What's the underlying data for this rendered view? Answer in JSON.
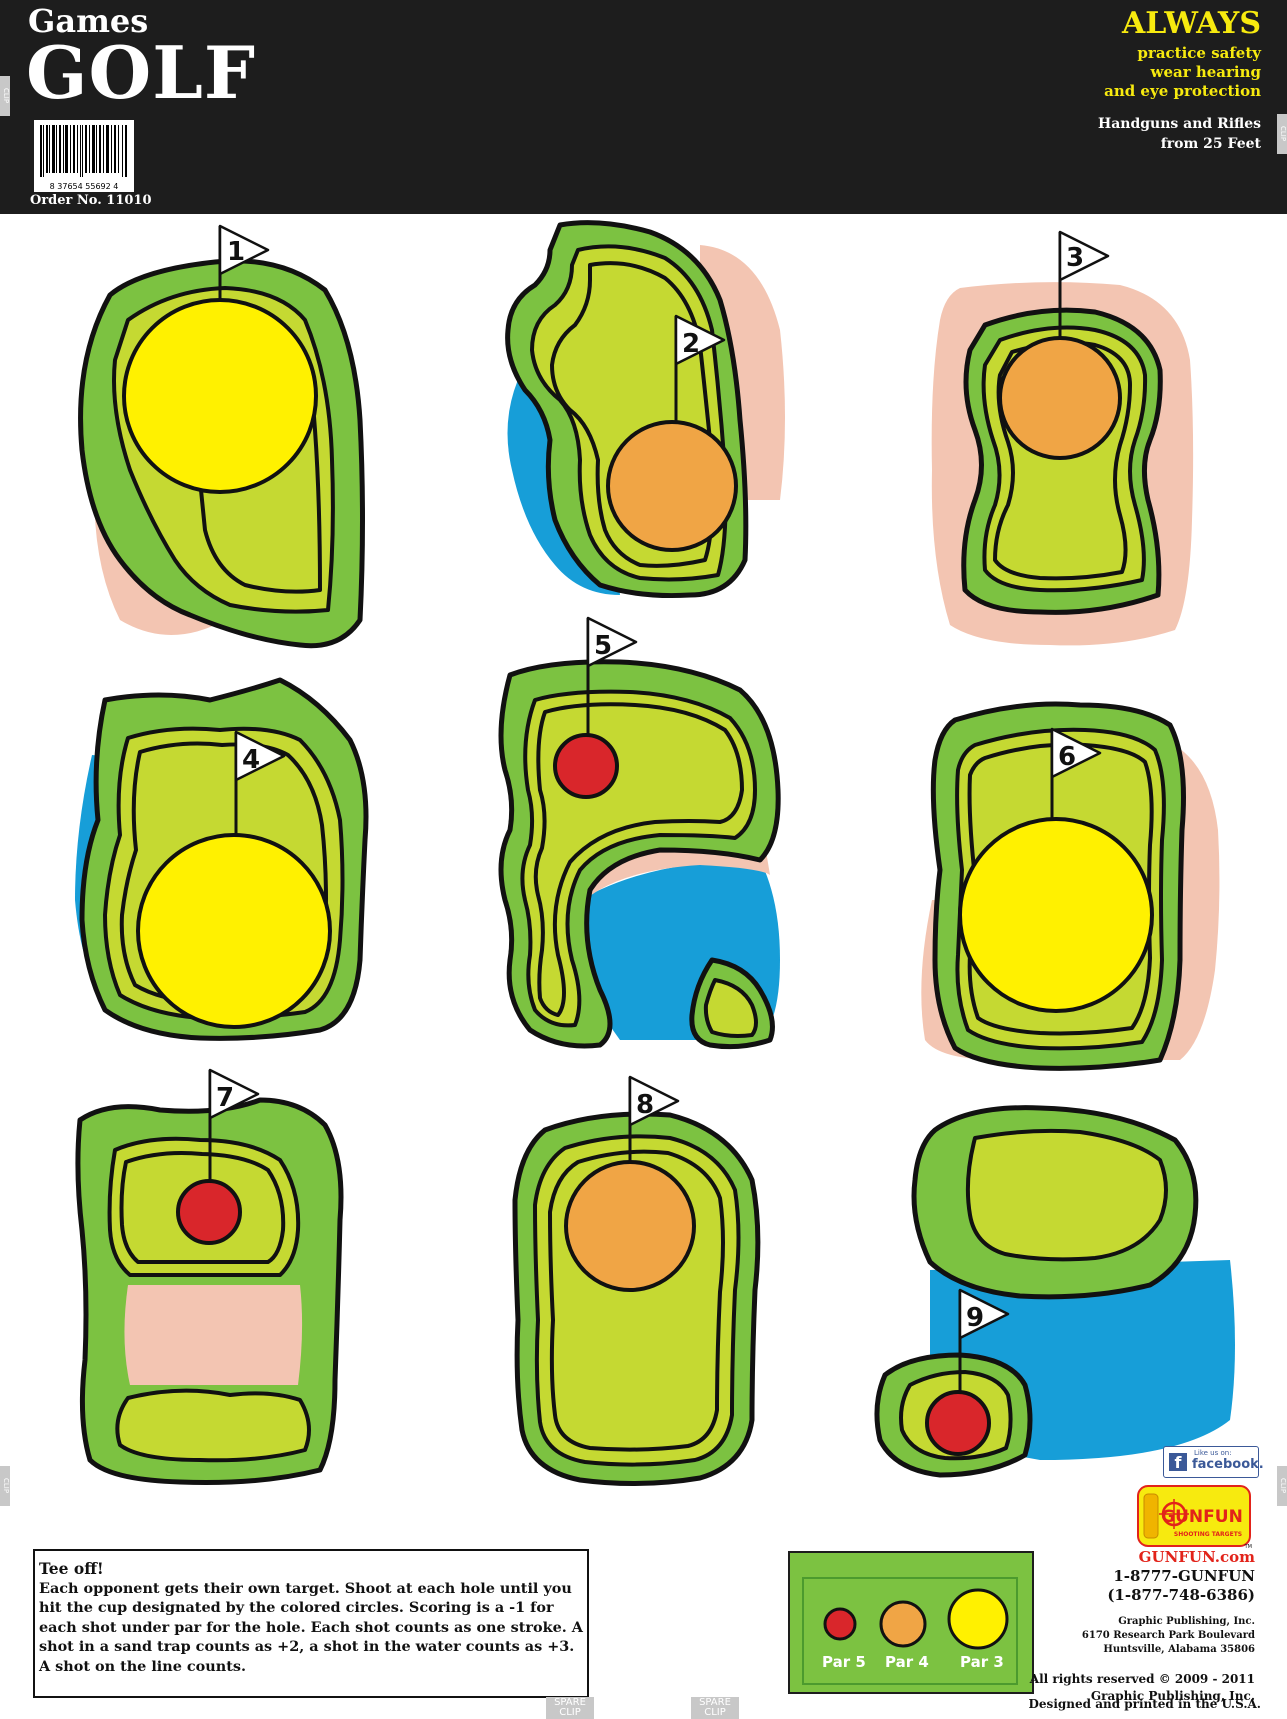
{
  "header": {
    "games": "Games",
    "golf": "GOLF",
    "barcode_number": "8 37654 55692 4",
    "order": "Order No. 11010",
    "always": "ALWAYS",
    "safety": [
      "practice safety",
      "wear hearing",
      "and eye protection"
    ],
    "range": [
      "Handguns and Rifles",
      "from 25 Feet"
    ]
  },
  "clip_label": "CLIP",
  "spare_clip": [
    "SPARE",
    "CLIP"
  ],
  "holes": [
    {
      "number": "1",
      "cup": "yellow"
    },
    {
      "number": "2",
      "cup": "orange"
    },
    {
      "number": "3",
      "cup": "orange"
    },
    {
      "number": "4",
      "cup": "yellow"
    },
    {
      "number": "5",
      "cup": "red"
    },
    {
      "number": "6",
      "cup": "yellow"
    },
    {
      "number": "7",
      "cup": "red"
    },
    {
      "number": "8",
      "cup": "orange"
    },
    {
      "number": "9",
      "cup": "red"
    }
  ],
  "colors": {
    "fairway_dark": "#7cc241",
    "green_light": "#c5d932",
    "sand": "#f3c5b2",
    "water": "#179ed8",
    "cup_yellow": "#fff100",
    "cup_orange": "#f0a545",
    "cup_red": "#d9262b",
    "header_bg": "#1d1d1d",
    "accent_yellow": "#f7ea0f"
  },
  "rules": {
    "title": "Tee off!",
    "text": "Each opponent gets their own target. Shoot at each hole until you hit the cup designated by the colored circles. Scoring is a -1 for each shot under par for the hole. Each shot counts as one stroke. A shot in a sand trap counts as +2, a shot in the water counts as +3. A shot on the line counts."
  },
  "legend": {
    "par5": "Par 5",
    "par4": "Par 4",
    "par3": "Par 3"
  },
  "facebook": {
    "like": "Like us on:",
    "word": "facebook.",
    "icon": "facebook-f-icon"
  },
  "logo": {
    "text": "GUNFUN",
    "sub": "SHOOTING TARGETS",
    "tm": "TM"
  },
  "contact": {
    "web": "GUNFUN.com",
    "phone1": "1-8777-GUNFUN",
    "phone2": "(1-877-748-6386)",
    "company": "Graphic Publishing, Inc.",
    "address1": "6170 Research Park Boulevard",
    "address2": "Huntsville, Alabama 35806",
    "rights1": "All rights reserved © 2009 - 2011",
    "rights2": "Graphic Publishing, Inc.",
    "printed": "Designed and printed in the U.S.A."
  }
}
